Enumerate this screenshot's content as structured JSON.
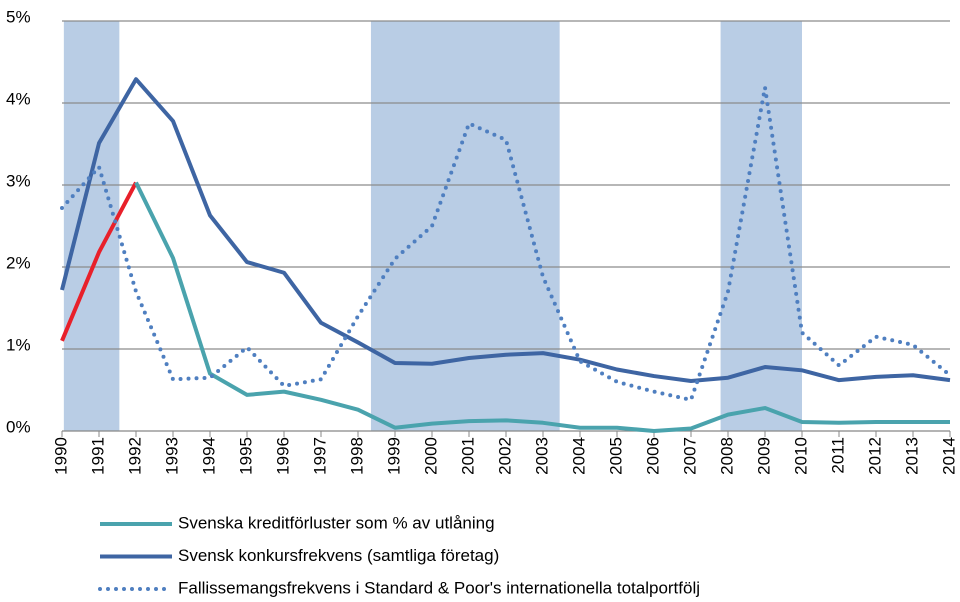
{
  "chart_data": {
    "type": "line",
    "x": [
      1990,
      1991,
      1992,
      1993,
      1994,
      1995,
      1996,
      1997,
      1998,
      1999,
      2000,
      2001,
      2002,
      2003,
      2004,
      2005,
      2006,
      2007,
      2008,
      2009,
      2010,
      2011,
      2012,
      2013,
      2014
    ],
    "xlim": [
      1990,
      2014
    ],
    "xticks": [
      1990,
      1991,
      1992,
      1993,
      1994,
      1995,
      1996,
      1997,
      1998,
      1999,
      2000,
      2001,
      2002,
      2003,
      2004,
      2005,
      2006,
      2007,
      2008,
      2009,
      2010,
      2011,
      2012,
      2013,
      2014
    ],
    "ylim": [
      0,
      5
    ],
    "yticks": [
      {
        "value": 0,
        "label": "0%"
      },
      {
        "value": 1,
        "label": "1%"
      },
      {
        "value": 2,
        "label": "2%"
      },
      {
        "value": 3,
        "label": "3%"
      },
      {
        "value": 4,
        "label": "4%"
      },
      {
        "value": 5,
        "label": "5%"
      }
    ],
    "grid": true,
    "shaded_periods": [
      [
        1990.05,
        1991.55
      ],
      [
        1998.35,
        2003.45
      ],
      [
        2007.8,
        2010.0
      ]
    ],
    "shade_color": "#b9cde5",
    "legend": "bottom",
    "series": [
      {
        "name": "Svenska kreditförluster som % av utlåning",
        "color": "#4aa3ad",
        "style": "solid",
        "highlight": {
          "until": 1992,
          "color": "#e8202a"
        },
        "values": [
          1.1,
          2.18,
          3.03,
          2.11,
          0.7,
          0.44,
          0.48,
          0.38,
          0.26,
          0.04,
          0.09,
          0.12,
          0.13,
          0.1,
          0.04,
          0.04,
          0.0,
          0.03,
          0.2,
          0.28,
          0.11,
          0.1,
          0.11,
          0.11,
          0.11
        ]
      },
      {
        "name": "Svensk konkursfrekvens (samtliga företag)",
        "color": "#3e65a3",
        "style": "solid",
        "values": [
          1.72,
          3.51,
          4.29,
          3.78,
          2.63,
          2.06,
          1.93,
          1.32,
          1.08,
          0.83,
          0.82,
          0.89,
          0.93,
          0.95,
          0.87,
          0.75,
          0.67,
          0.61,
          0.65,
          0.78,
          0.74,
          0.62,
          0.66,
          0.68,
          0.62
        ]
      },
      {
        "name": "Fallissemangsfrekvens i Standard & Poor's internationella totalportfölj",
        "color": "#4f7fc0",
        "style": "dotted",
        "values": [
          2.72,
          3.22,
          1.7,
          0.63,
          0.65,
          1.02,
          0.55,
          0.63,
          1.4,
          2.1,
          2.5,
          3.75,
          3.55,
          1.88,
          0.85,
          0.6,
          0.48,
          0.38,
          1.7,
          4.19,
          1.2,
          0.8,
          1.15,
          1.05,
          0.68
        ]
      }
    ]
  }
}
